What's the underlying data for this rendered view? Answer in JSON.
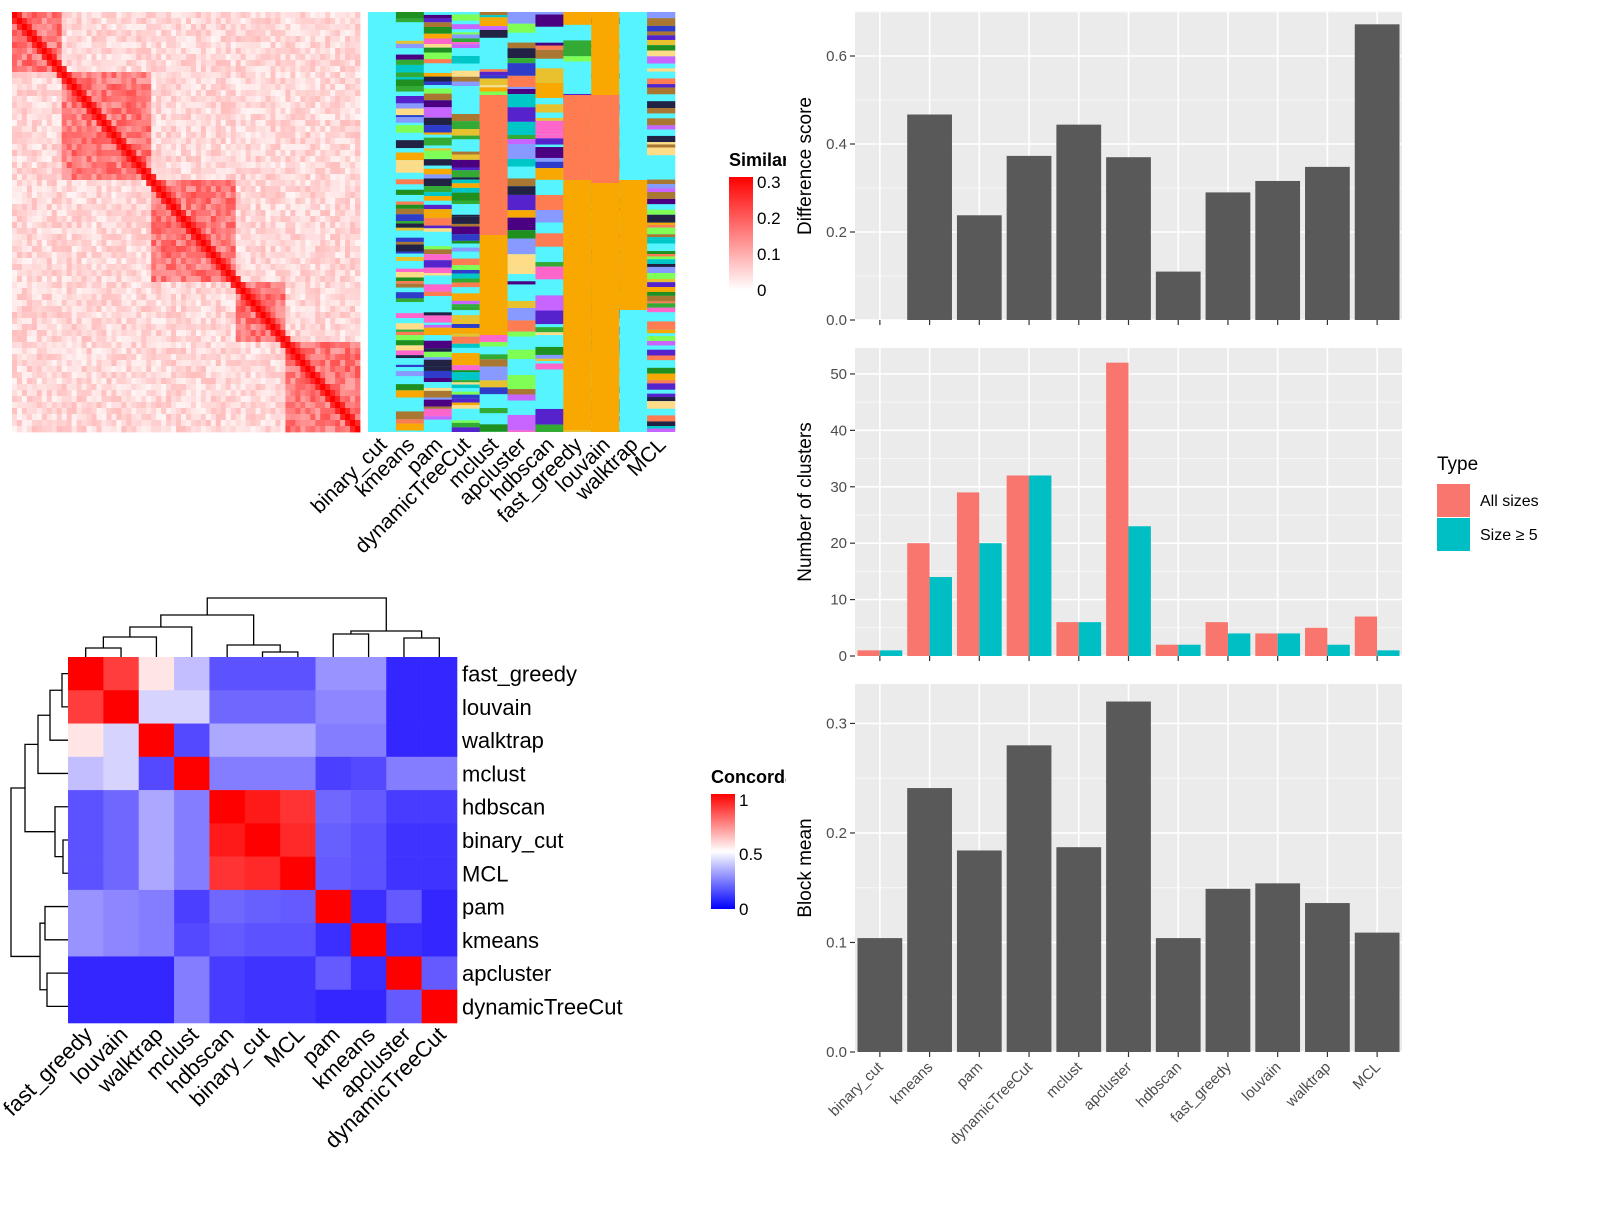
{
  "chart_data": [
    {
      "type": "heatmap",
      "name": "similarity-heatmap-with-cluster-annotations",
      "colorbar": {
        "title": "Similarity",
        "ticks": [
          "0.3",
          "0.2",
          "0.1",
          "0"
        ],
        "colors": [
          "#ffffff",
          "#ff0000"
        ]
      },
      "column_labels": [
        "binary_cut",
        "kmeans",
        "pam",
        "dynamicTreeCut",
        "mclust",
        "apcluster",
        "hdbscan",
        "fast_greedy",
        "louvain",
        "walktrap",
        "MCL"
      ]
    },
    {
      "type": "heatmap",
      "name": "concordance-heatmap",
      "colorbar": {
        "title": "Concordance",
        "ticks": [
          "1",
          "0.5",
          "0"
        ],
        "colors": [
          "#0000ff",
          "#ffffff",
          "#ff0000"
        ]
      },
      "row_labels": [
        "fast_greedy",
        "louvain",
        "walktrap",
        "mclust",
        "hdbscan",
        "binary_cut",
        "MCL",
        "pam",
        "kmeans",
        "apcluster",
        "dynamicTreeCut"
      ],
      "col_labels": [
        "fast_greedy",
        "louvain",
        "walktrap",
        "mclust",
        "hdbscan",
        "binary_cut",
        "MCL",
        "pam",
        "kmeans",
        "apcluster",
        "dynamicTreeCut"
      ],
      "values": [
        [
          1.0,
          0.88,
          0.55,
          0.35,
          0.1,
          0.1,
          0.1,
          0.25,
          0.25,
          0.0,
          0.0
        ],
        [
          0.88,
          1.0,
          0.4,
          0.4,
          0.15,
          0.15,
          0.15,
          0.22,
          0.22,
          0.0,
          0.0
        ],
        [
          0.55,
          0.4,
          1.0,
          0.08,
          0.3,
          0.3,
          0.3,
          0.2,
          0.2,
          0.0,
          0.0
        ],
        [
          0.35,
          0.4,
          0.08,
          1.0,
          0.2,
          0.2,
          0.2,
          0.06,
          0.08,
          0.2,
          0.2
        ],
        [
          0.1,
          0.15,
          0.3,
          0.2,
          1.0,
          0.95,
          0.9,
          0.15,
          0.12,
          0.05,
          0.05
        ],
        [
          0.1,
          0.15,
          0.3,
          0.2,
          0.95,
          1.0,
          0.92,
          0.13,
          0.1,
          0.03,
          0.03
        ],
        [
          0.1,
          0.15,
          0.3,
          0.2,
          0.9,
          0.92,
          1.0,
          0.12,
          0.1,
          0.03,
          0.03
        ],
        [
          0.25,
          0.22,
          0.2,
          0.06,
          0.15,
          0.13,
          0.12,
          1.0,
          0.02,
          0.12,
          0.0
        ],
        [
          0.25,
          0.22,
          0.2,
          0.08,
          0.12,
          0.1,
          0.1,
          0.02,
          1.0,
          0.02,
          0.0
        ],
        [
          0.0,
          0.0,
          0.0,
          0.2,
          0.05,
          0.03,
          0.03,
          0.12,
          0.02,
          1.0,
          0.12
        ],
        [
          0.0,
          0.0,
          0.0,
          0.2,
          0.05,
          0.03,
          0.03,
          0.0,
          0.0,
          0.12,
          1.0
        ]
      ]
    },
    {
      "type": "bar",
      "name": "difference-score",
      "categories": [
        "binary_cut",
        "kmeans",
        "pam",
        "dynamicTreeCut",
        "mclust",
        "apcluster",
        "hdbscan",
        "fast_greedy",
        "louvain",
        "walktrap",
        "MCL"
      ],
      "values": [
        0,
        0.467,
        0.238,
        0.373,
        0.444,
        0.37,
        0.11,
        0.29,
        0.316,
        0.348,
        0.672
      ],
      "ylabel": "Difference score",
      "ylim": [
        0,
        0.7
      ],
      "yticks": [
        "0.0",
        "0.2",
        "0.4",
        "0.6"
      ],
      "ytick_values": [
        0,
        0.2,
        0.4,
        0.6
      ]
    },
    {
      "type": "bar",
      "name": "number-of-clusters",
      "categories": [
        "binary_cut",
        "kmeans",
        "pam",
        "dynamicTreeCut",
        "mclust",
        "apcluster",
        "hdbscan",
        "fast_greedy",
        "louvain",
        "walktrap",
        "MCL"
      ],
      "series": [
        {
          "name": "All sizes",
          "color": "#F8766D",
          "values": [
            1,
            20,
            29,
            32,
            6,
            52,
            2,
            6,
            4,
            5,
            7
          ]
        },
        {
          "name": "Size ≥ 5",
          "color": "#00BFC4",
          "values": [
            1,
            14,
            20,
            32,
            6,
            23,
            2,
            4,
            4,
            2,
            1
          ]
        }
      ],
      "ylabel": "Number of clusters",
      "ylim": [
        0,
        54.6
      ],
      "yticks": [
        "0",
        "10",
        "20",
        "30",
        "40",
        "50"
      ],
      "ytick_values": [
        0,
        10,
        20,
        30,
        40,
        50
      ],
      "legend": {
        "title": "Type",
        "position": "right"
      }
    },
    {
      "type": "bar",
      "name": "block-mean",
      "categories": [
        "binary_cut",
        "kmeans",
        "pam",
        "dynamicTreeCut",
        "mclust",
        "apcluster",
        "hdbscan",
        "fast_greedy",
        "louvain",
        "walktrap",
        "MCL"
      ],
      "values": [
        0.104,
        0.241,
        0.184,
        0.28,
        0.187,
        0.32,
        0.104,
        0.149,
        0.154,
        0.136,
        0.109
      ],
      "ylabel": "Block mean",
      "ylim": [
        0,
        0.336
      ],
      "yticks": [
        "0.0",
        "0.1",
        "0.2",
        "0.3"
      ],
      "ytick_values": [
        0,
        0.1,
        0.2,
        0.3
      ]
    }
  ]
}
